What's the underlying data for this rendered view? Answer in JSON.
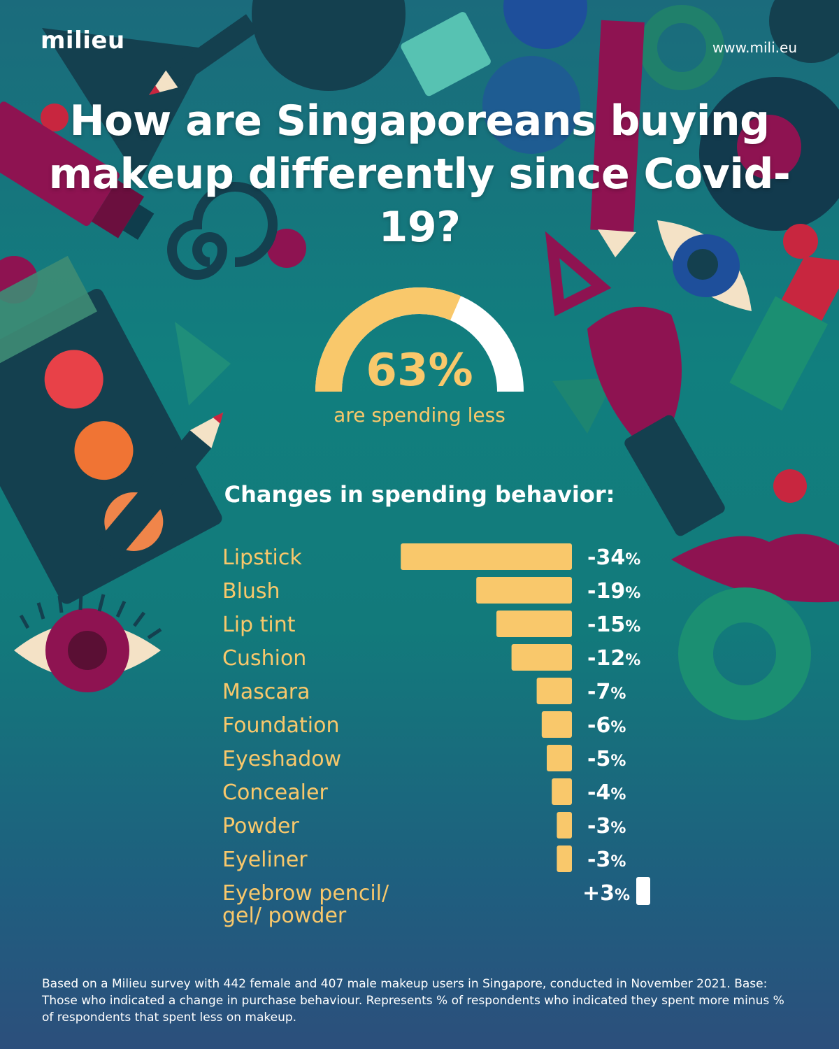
{
  "brand": {
    "logo": "milieu",
    "url": "www.mili.eu"
  },
  "title_line1": "How are Singaporeans buying",
  "title_line2": "makeup differently since Covid-19?",
  "gauge": {
    "value_label": "63%",
    "value": 0.63,
    "caption": "are spending less"
  },
  "section_title": "Changes in spending behavior:",
  "chart_data": {
    "type": "bar",
    "orientation": "horizontal",
    "title": "Changes in spending behavior:",
    "categories": [
      "Lipstick",
      "Blush",
      "Lip tint",
      "Cushion",
      "Mascara",
      "Foundation",
      "Eyeshadow",
      "Concealer",
      "Powder",
      "Eyeliner",
      "Eyebrow pencil/ gel/ powder"
    ],
    "category_lines": [
      [
        "Lipstick"
      ],
      [
        "Blush"
      ],
      [
        "Lip tint"
      ],
      [
        "Cushion"
      ],
      [
        "Mascara"
      ],
      [
        "Foundation"
      ],
      [
        "Eyeshadow"
      ],
      [
        "Concealer"
      ],
      [
        "Powder"
      ],
      [
        "Eyeliner"
      ],
      [
        "Eyebrow pencil/",
        "gel/ powder"
      ]
    ],
    "values": [
      -34,
      -19,
      -15,
      -12,
      -7,
      -6,
      -5,
      -4,
      -3,
      -3,
      3
    ],
    "value_labels": [
      "-34",
      "-19",
      "-15",
      "-12",
      "-7",
      "-6",
      "-5",
      "-4",
      "-3",
      "-3",
      "+3"
    ],
    "unit": "%",
    "colors": {
      "negative": "#f9c86b",
      "positive": "#ffffff",
      "label": "#f9c86b",
      "value_text": "#ffffff"
    }
  },
  "footnote": "Based on a Milieu survey with 442 female and 407 male makeup users in Singapore, conducted in November 2021. Base: Those who indicated a change in purchase behaviour. Represents % of respondents who indicated they spent more minus % of respondents that  spent less on makeup.",
  "colors": {
    "accent_yellow": "#f9c86b",
    "magenta": "#8e1351",
    "dark_teal": "#0f3d4c",
    "red": "#c8263f"
  }
}
